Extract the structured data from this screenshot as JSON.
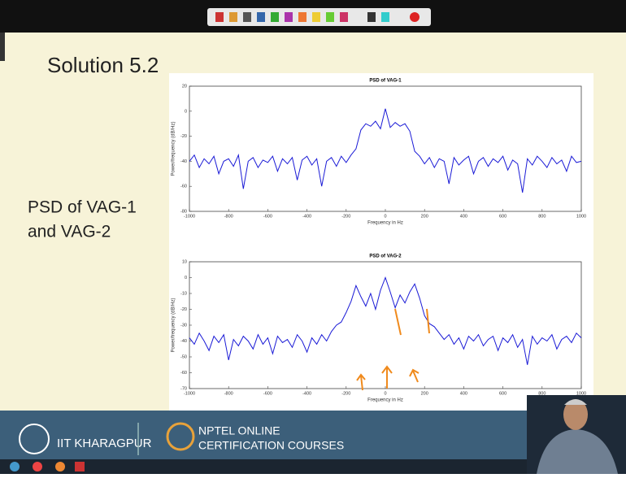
{
  "slide": {
    "title": "Solution 5.2",
    "caption_lines": [
      "PSD of VAG-1",
      "and VAG-2"
    ],
    "footer_left": "IIT KHARAGPUR",
    "footer_right_lines": [
      "NPTEL ONLINE",
      "CERTIFICATION COURSES"
    ]
  },
  "chart_data": [
    {
      "type": "line",
      "title": "PSD of VAG-1",
      "x_label": "Frequency in Hz",
      "y_label": "Power/frequency (dB/Hz)",
      "x": [
        -1000,
        -975,
        -950,
        -925,
        -900,
        -875,
        -850,
        -825,
        -800,
        -775,
        -750,
        -725,
        -700,
        -675,
        -650,
        -625,
        -600,
        -575,
        -550,
        -525,
        -500,
        -475,
        -450,
        -425,
        -400,
        -375,
        -350,
        -325,
        -300,
        -275,
        -250,
        -225,
        -200,
        -175,
        -150,
        -125,
        -100,
        -75,
        -50,
        -25,
        0,
        25,
        50,
        75,
        100,
        125,
        150,
        175,
        200,
        225,
        250,
        275,
        300,
        325,
        350,
        375,
        400,
        425,
        450,
        475,
        500,
        525,
        550,
        575,
        600,
        625,
        650,
        675,
        700,
        725,
        750,
        775,
        800,
        825,
        850,
        875,
        900,
        925,
        950,
        975,
        1000
      ],
      "series": [
        {
          "color": "#1a1ad6",
          "values": [
            -40,
            -35,
            -45,
            -38,
            -42,
            -36,
            -50,
            -40,
            -38,
            -44,
            -35,
            -62,
            -40,
            -37,
            -45,
            -39,
            -41,
            -36,
            -48,
            -38,
            -42,
            -37,
            -55,
            -39,
            -36,
            -43,
            -38,
            -60,
            -40,
            -37,
            -44,
            -36,
            -41,
            -35,
            -30,
            -15,
            -10,
            -12,
            -8,
            -14,
            2,
            -13,
            -9,
            -12,
            -10,
            -16,
            -32,
            -36,
            -42,
            -37,
            -45,
            -38,
            -40,
            -58,
            -37,
            -43,
            -39,
            -36,
            -50,
            -40,
            -37,
            -44,
            -38,
            -41,
            -36,
            -47,
            -39,
            -42,
            -65,
            -38,
            -43,
            -36,
            -40,
            -45,
            -37,
            -42,
            -39,
            -48,
            -36,
            -41,
            -40
          ]
        }
      ],
      "xlim": [
        -1000,
        1000
      ],
      "xticks": [
        -1000,
        -800,
        -600,
        -400,
        -200,
        0,
        200,
        400,
        600,
        800,
        1000
      ],
      "ylim": [
        -80,
        20
      ],
      "yticks": [
        -80,
        -60,
        -40,
        -20,
        0,
        20
      ],
      "grid": false
    },
    {
      "type": "line",
      "title": "PSD of VAG-2",
      "x_label": "Frequency in Hz",
      "y_label": "Power/frequency (dB/Hz)",
      "x": [
        -1000,
        -975,
        -950,
        -925,
        -900,
        -875,
        -850,
        -825,
        -800,
        -775,
        -750,
        -725,
        -700,
        -675,
        -650,
        -625,
        -600,
        -575,
        -550,
        -525,
        -500,
        -475,
        -450,
        -425,
        -400,
        -375,
        -350,
        -325,
        -300,
        -275,
        -250,
        -225,
        -200,
        -175,
        -150,
        -125,
        -100,
        -75,
        -50,
        -25,
        0,
        25,
        50,
        75,
        100,
        125,
        150,
        175,
        200,
        225,
        250,
        275,
        300,
        325,
        350,
        375,
        400,
        425,
        450,
        475,
        500,
        525,
        550,
        575,
        600,
        625,
        650,
        675,
        700,
        725,
        750,
        775,
        800,
        825,
        850,
        875,
        900,
        925,
        950,
        975,
        1000
      ],
      "series": [
        {
          "color": "#1a1ad6",
          "values": [
            -38,
            -42,
            -35,
            -40,
            -46,
            -37,
            -41,
            -36,
            -52,
            -39,
            -43,
            -37,
            -40,
            -45,
            -36,
            -42,
            -38,
            -48,
            -37,
            -41,
            -39,
            -44,
            -36,
            -40,
            -47,
            -38,
            -42,
            -36,
            -40,
            -34,
            -30,
            -28,
            -22,
            -15,
            -5,
            -12,
            -18,
            -10,
            -20,
            -8,
            0,
            -9,
            -19,
            -11,
            -16,
            -9,
            -4,
            -13,
            -24,
            -29,
            -31,
            -35,
            -39,
            -36,
            -42,
            -38,
            -45,
            -37,
            -40,
            -36,
            -43,
            -39,
            -37,
            -46,
            -38,
            -41,
            -36,
            -44,
            -39,
            -55,
            -37,
            -42,
            -38,
            -40,
            -36,
            -45,
            -39,
            -37,
            -41,
            -35,
            -38
          ]
        }
      ],
      "xlim": [
        -1000,
        1000
      ],
      "xticks": [
        -1000,
        -800,
        -600,
        -400,
        -200,
        0,
        200,
        400,
        600,
        800,
        1000
      ],
      "ylim": [
        -70,
        10
      ],
      "yticks": [
        -70,
        -60,
        -50,
        -40,
        -30,
        -20,
        -10,
        0,
        10
      ],
      "grid": false
    }
  ]
}
